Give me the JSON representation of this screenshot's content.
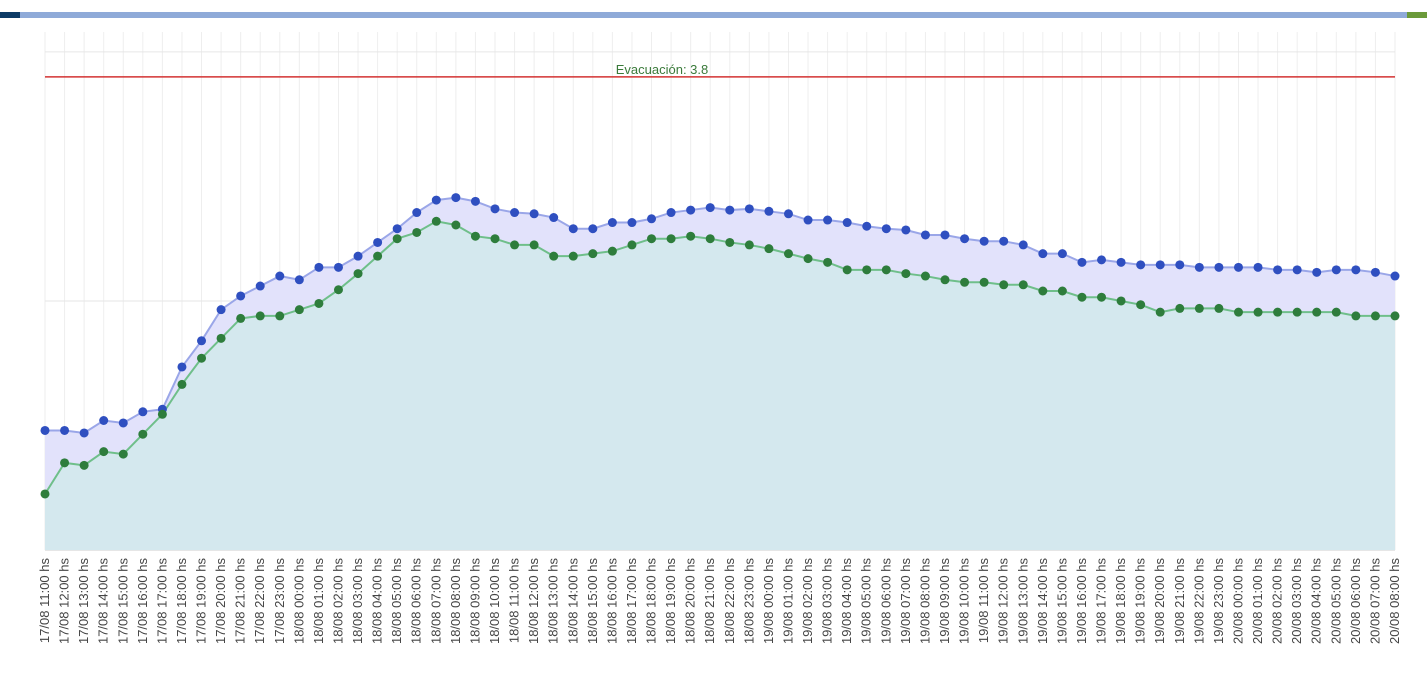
{
  "chart_data": {
    "type": "area",
    "title": "",
    "xlabel": "",
    "ylabel": "",
    "ylim": [
      0,
      4.16
    ],
    "grid": true,
    "legend": "none",
    "colors": {
      "series_a_line": "#2f4fc0",
      "series_a_fill": "#e2e2fb",
      "series_b_line": "#3a9a5a",
      "series_b_fill": "#d4e8ee",
      "threshold": "#d33333",
      "threshold_label": "#3a7a3a",
      "top_bar": "#8faad8"
    },
    "threshold": {
      "label": "Evacuación: 3.8",
      "value": 3.8
    },
    "x": [
      "17/08 11:00 hs",
      "17/08 12:00 hs",
      "17/08 13:00 hs",
      "17/08 14:00 hs",
      "17/08 15:00 hs",
      "17/08 16:00 hs",
      "17/08 17:00 hs",
      "17/08 18:00 hs",
      "17/08 19:00 hs",
      "17/08 20:00 hs",
      "17/08 21:00 hs",
      "17/08 22:00 hs",
      "17/08 23:00 hs",
      "18/08 00:00 hs",
      "18/08 01:00 hs",
      "18/08 02:00 hs",
      "18/08 03:00 hs",
      "18/08 04:00 hs",
      "18/08 05:00 hs",
      "18/08 06:00 hs",
      "18/08 07:00 hs",
      "18/08 08:00 hs",
      "18/08 09:00 hs",
      "18/08 10:00 hs",
      "18/08 11:00 hs",
      "18/08 12:00 hs",
      "18/08 13:00 hs",
      "18/08 14:00 hs",
      "18/08 15:00 hs",
      "18/08 16:00 hs",
      "18/08 17:00 hs",
      "18/08 18:00 hs",
      "18/08 19:00 hs",
      "18/08 20:00 hs",
      "18/08 21:00 hs",
      "18/08 22:00 hs",
      "18/08 23:00 hs",
      "19/08 00:00 hs",
      "19/08 01:00 hs",
      "19/08 02:00 hs",
      "19/08 03:00 hs",
      "19/08 04:00 hs",
      "19/08 05:00 hs",
      "19/08 06:00 hs",
      "19/08 07:00 hs",
      "19/08 08:00 hs",
      "19/08 09:00 hs",
      "19/08 10:00 hs",
      "19/08 11:00 hs",
      "19/08 12:00 hs",
      "19/08 13:00 hs",
      "19/08 14:00 hs",
      "19/08 15:00 hs",
      "19/08 16:00 hs",
      "19/08 17:00 hs",
      "19/08 18:00 hs",
      "19/08 19:00 hs",
      "19/08 20:00 hs",
      "19/08 21:00 hs",
      "19/08 22:00 hs",
      "19/08 23:00 hs",
      "20/08 00:00 hs",
      "20/08 01:00 hs",
      "20/08 02:00 hs",
      "20/08 03:00 hs",
      "20/08 04:00 hs",
      "20/08 05:00 hs",
      "20/08 06:00 hs",
      "20/08 07:00 hs",
      "20/08 08:00 hs"
    ],
    "series": [
      {
        "values": [
          0.96,
          0.96,
          0.94,
          1.04,
          1.02,
          1.11,
          1.13,
          1.47,
          1.68,
          1.93,
          2.04,
          2.12,
          2.2,
          2.17,
          2.27,
          2.27,
          2.36,
          2.47,
          2.58,
          2.71,
          2.81,
          2.83,
          2.8,
          2.74,
          2.71,
          2.7,
          2.67,
          2.58,
          2.58,
          2.63,
          2.63,
          2.66,
          2.71,
          2.73,
          2.75,
          2.73,
          2.74,
          2.72,
          2.7,
          2.65,
          2.65,
          2.63,
          2.6,
          2.58,
          2.57,
          2.53,
          2.53,
          2.5,
          2.48,
          2.48,
          2.45,
          2.38,
          2.38,
          2.31,
          2.33,
          2.31,
          2.29,
          2.29,
          2.29,
          2.27,
          2.27,
          2.27,
          2.27,
          2.25,
          2.25,
          2.23,
          2.25,
          2.25,
          2.23,
          2.2
        ]
      },
      {
        "values": [
          0.45,
          0.7,
          0.68,
          0.79,
          0.77,
          0.93,
          1.09,
          1.33,
          1.54,
          1.7,
          1.86,
          1.88,
          1.88,
          1.93,
          1.98,
          2.09,
          2.22,
          2.36,
          2.5,
          2.55,
          2.64,
          2.61,
          2.52,
          2.5,
          2.45,
          2.45,
          2.36,
          2.36,
          2.38,
          2.4,
          2.45,
          2.5,
          2.5,
          2.52,
          2.5,
          2.47,
          2.45,
          2.42,
          2.38,
          2.34,
          2.31,
          2.25,
          2.25,
          2.25,
          2.22,
          2.2,
          2.17,
          2.15,
          2.15,
          2.13,
          2.13,
          2.08,
          2.08,
          2.03,
          2.03,
          2.0,
          1.97,
          1.91,
          1.94,
          1.94,
          1.94,
          1.91,
          1.91,
          1.91,
          1.91,
          1.91,
          1.91,
          1.88,
          1.88,
          1.88
        ]
      }
    ]
  }
}
